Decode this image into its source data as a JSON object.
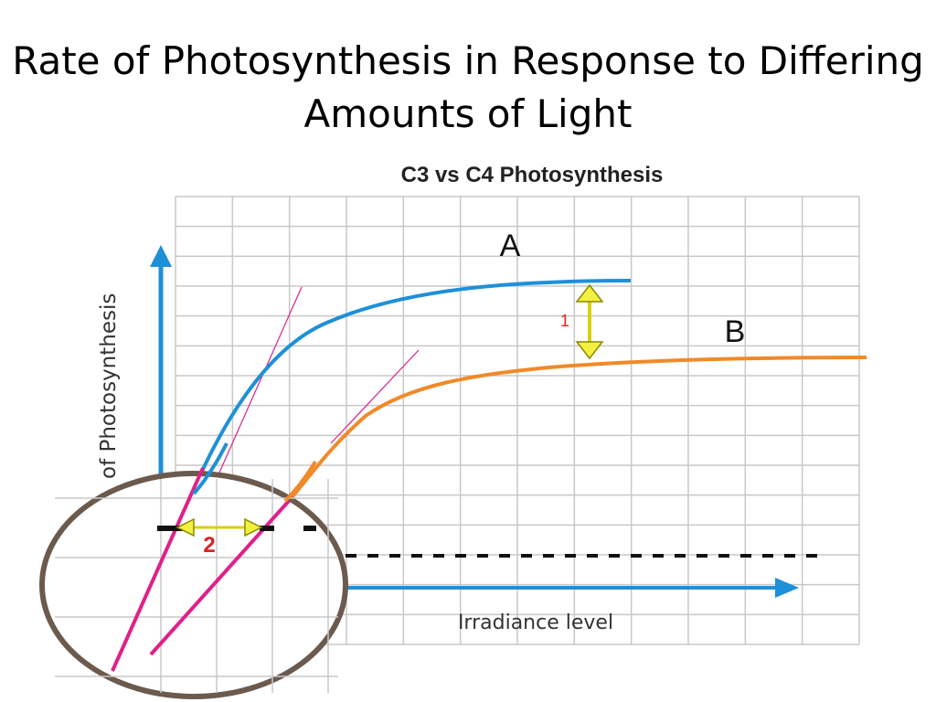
{
  "slide": {
    "title_line1": "Rate of Photosynthesis in Response to Differing",
    "title_line2": "Amounts of Light"
  },
  "chart_data": {
    "type": "line",
    "title": "C3 vs C4 Photosynthesis",
    "xlabel": "Irradiance level",
    "ylabel": "of Photosynthesis",
    "series": [
      {
        "name": "A",
        "color": "#1e90d8",
        "x": [
          0.4,
          1.0,
          1.5,
          2.0,
          3.0,
          4.0,
          5.0,
          6.0,
          7.0,
          7.4
        ],
        "y": [
          1.0,
          3.0,
          4.5,
          5.5,
          6.3,
          6.6,
          6.8,
          6.95,
          7.0,
          7.0
        ]
      },
      {
        "name": "B",
        "color": "#f08a2a",
        "x": [
          1.8,
          2.2,
          2.6,
          3.0,
          3.6,
          4.5,
          5.5,
          6.5,
          8.0,
          9.5,
          11.3
        ],
        "y": [
          1.2,
          2.0,
          3.0,
          4.0,
          4.6,
          5.0,
          5.3,
          5.5,
          5.7,
          5.85,
          5.9
        ]
      }
    ],
    "annotations": [
      {
        "label": "1",
        "meaning": "vertical double arrow between curves A and B plateaus"
      },
      {
        "label": "2",
        "meaning": "horizontal double arrow between x-intercepts of tangent lines"
      }
    ],
    "tangent_color": "#e0208a",
    "arrow_color": "#e8e020",
    "axis_color": "#1e90d8",
    "grid": true,
    "xlim": [
      0,
      12
    ],
    "ylim": [
      -1,
      9
    ]
  }
}
